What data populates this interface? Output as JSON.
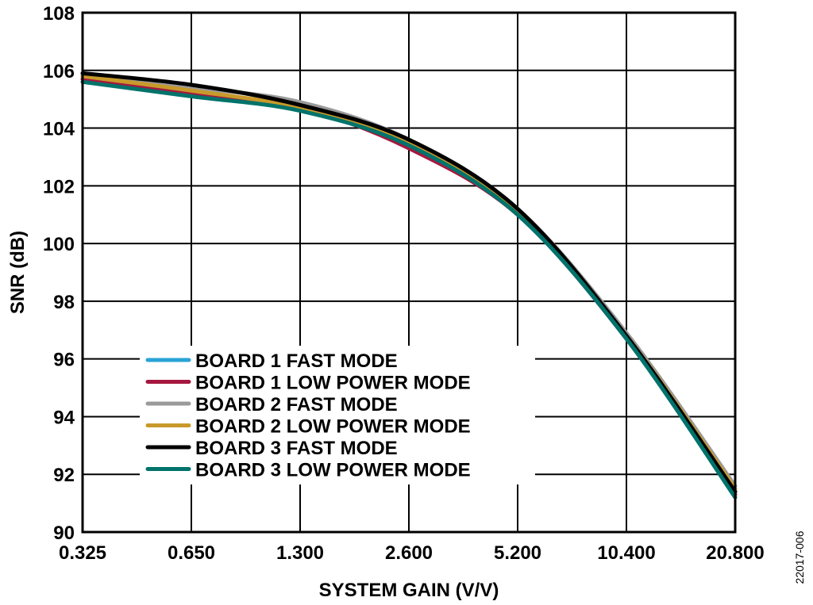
{
  "chart_data": {
    "type": "line",
    "title": "",
    "xlabel": "SYSTEM GAIN (V/V)",
    "ylabel": "SNR (dB)",
    "x_scale": "log2",
    "xlim": [
      0.325,
      20.8
    ],
    "ylim": [
      90,
      108
    ],
    "x_ticks": [
      "0.325",
      "0.650",
      "1.300",
      "2.600",
      "5.200",
      "10.400",
      "20.800"
    ],
    "y_ticks": [
      "90",
      "92",
      "94",
      "96",
      "98",
      "100",
      "102",
      "104",
      "106",
      "108"
    ],
    "grid": true,
    "legend_position": "lower-left",
    "x": [
      0.325,
      0.65,
      1.3,
      2.6,
      5.2,
      10.4,
      20.8
    ],
    "series": [
      {
        "name": "BOARD 1 FAST MODE",
        "color": "#29a3d6",
        "values": [
          105.8,
          105.2,
          104.7,
          103.4,
          101.0,
          96.7,
          91.3
        ]
      },
      {
        "name": "BOARD 1 LOW POWER MODE",
        "color": "#a6183f",
        "values": [
          105.7,
          105.2,
          104.7,
          103.3,
          101.0,
          96.7,
          91.3
        ]
      },
      {
        "name": "BOARD 2 FAST MODE",
        "color": "#9a9a9a",
        "values": [
          105.8,
          105.4,
          104.9,
          103.6,
          101.2,
          96.9,
          91.6
        ]
      },
      {
        "name": "BOARD 2 LOW POWER MODE",
        "color": "#c89a2a",
        "values": [
          105.8,
          105.3,
          104.7,
          103.5,
          101.1,
          96.8,
          91.5
        ]
      },
      {
        "name": "BOARD 3 FAST MODE",
        "color": "#000000",
        "values": [
          105.9,
          105.5,
          104.8,
          103.6,
          101.2,
          96.8,
          91.4
        ]
      },
      {
        "name": "BOARD 3 LOW POWER MODE",
        "color": "#00736b",
        "values": [
          105.6,
          105.1,
          104.6,
          103.4,
          101.0,
          96.7,
          91.2
        ]
      }
    ]
  },
  "figure_id": "22017-006"
}
